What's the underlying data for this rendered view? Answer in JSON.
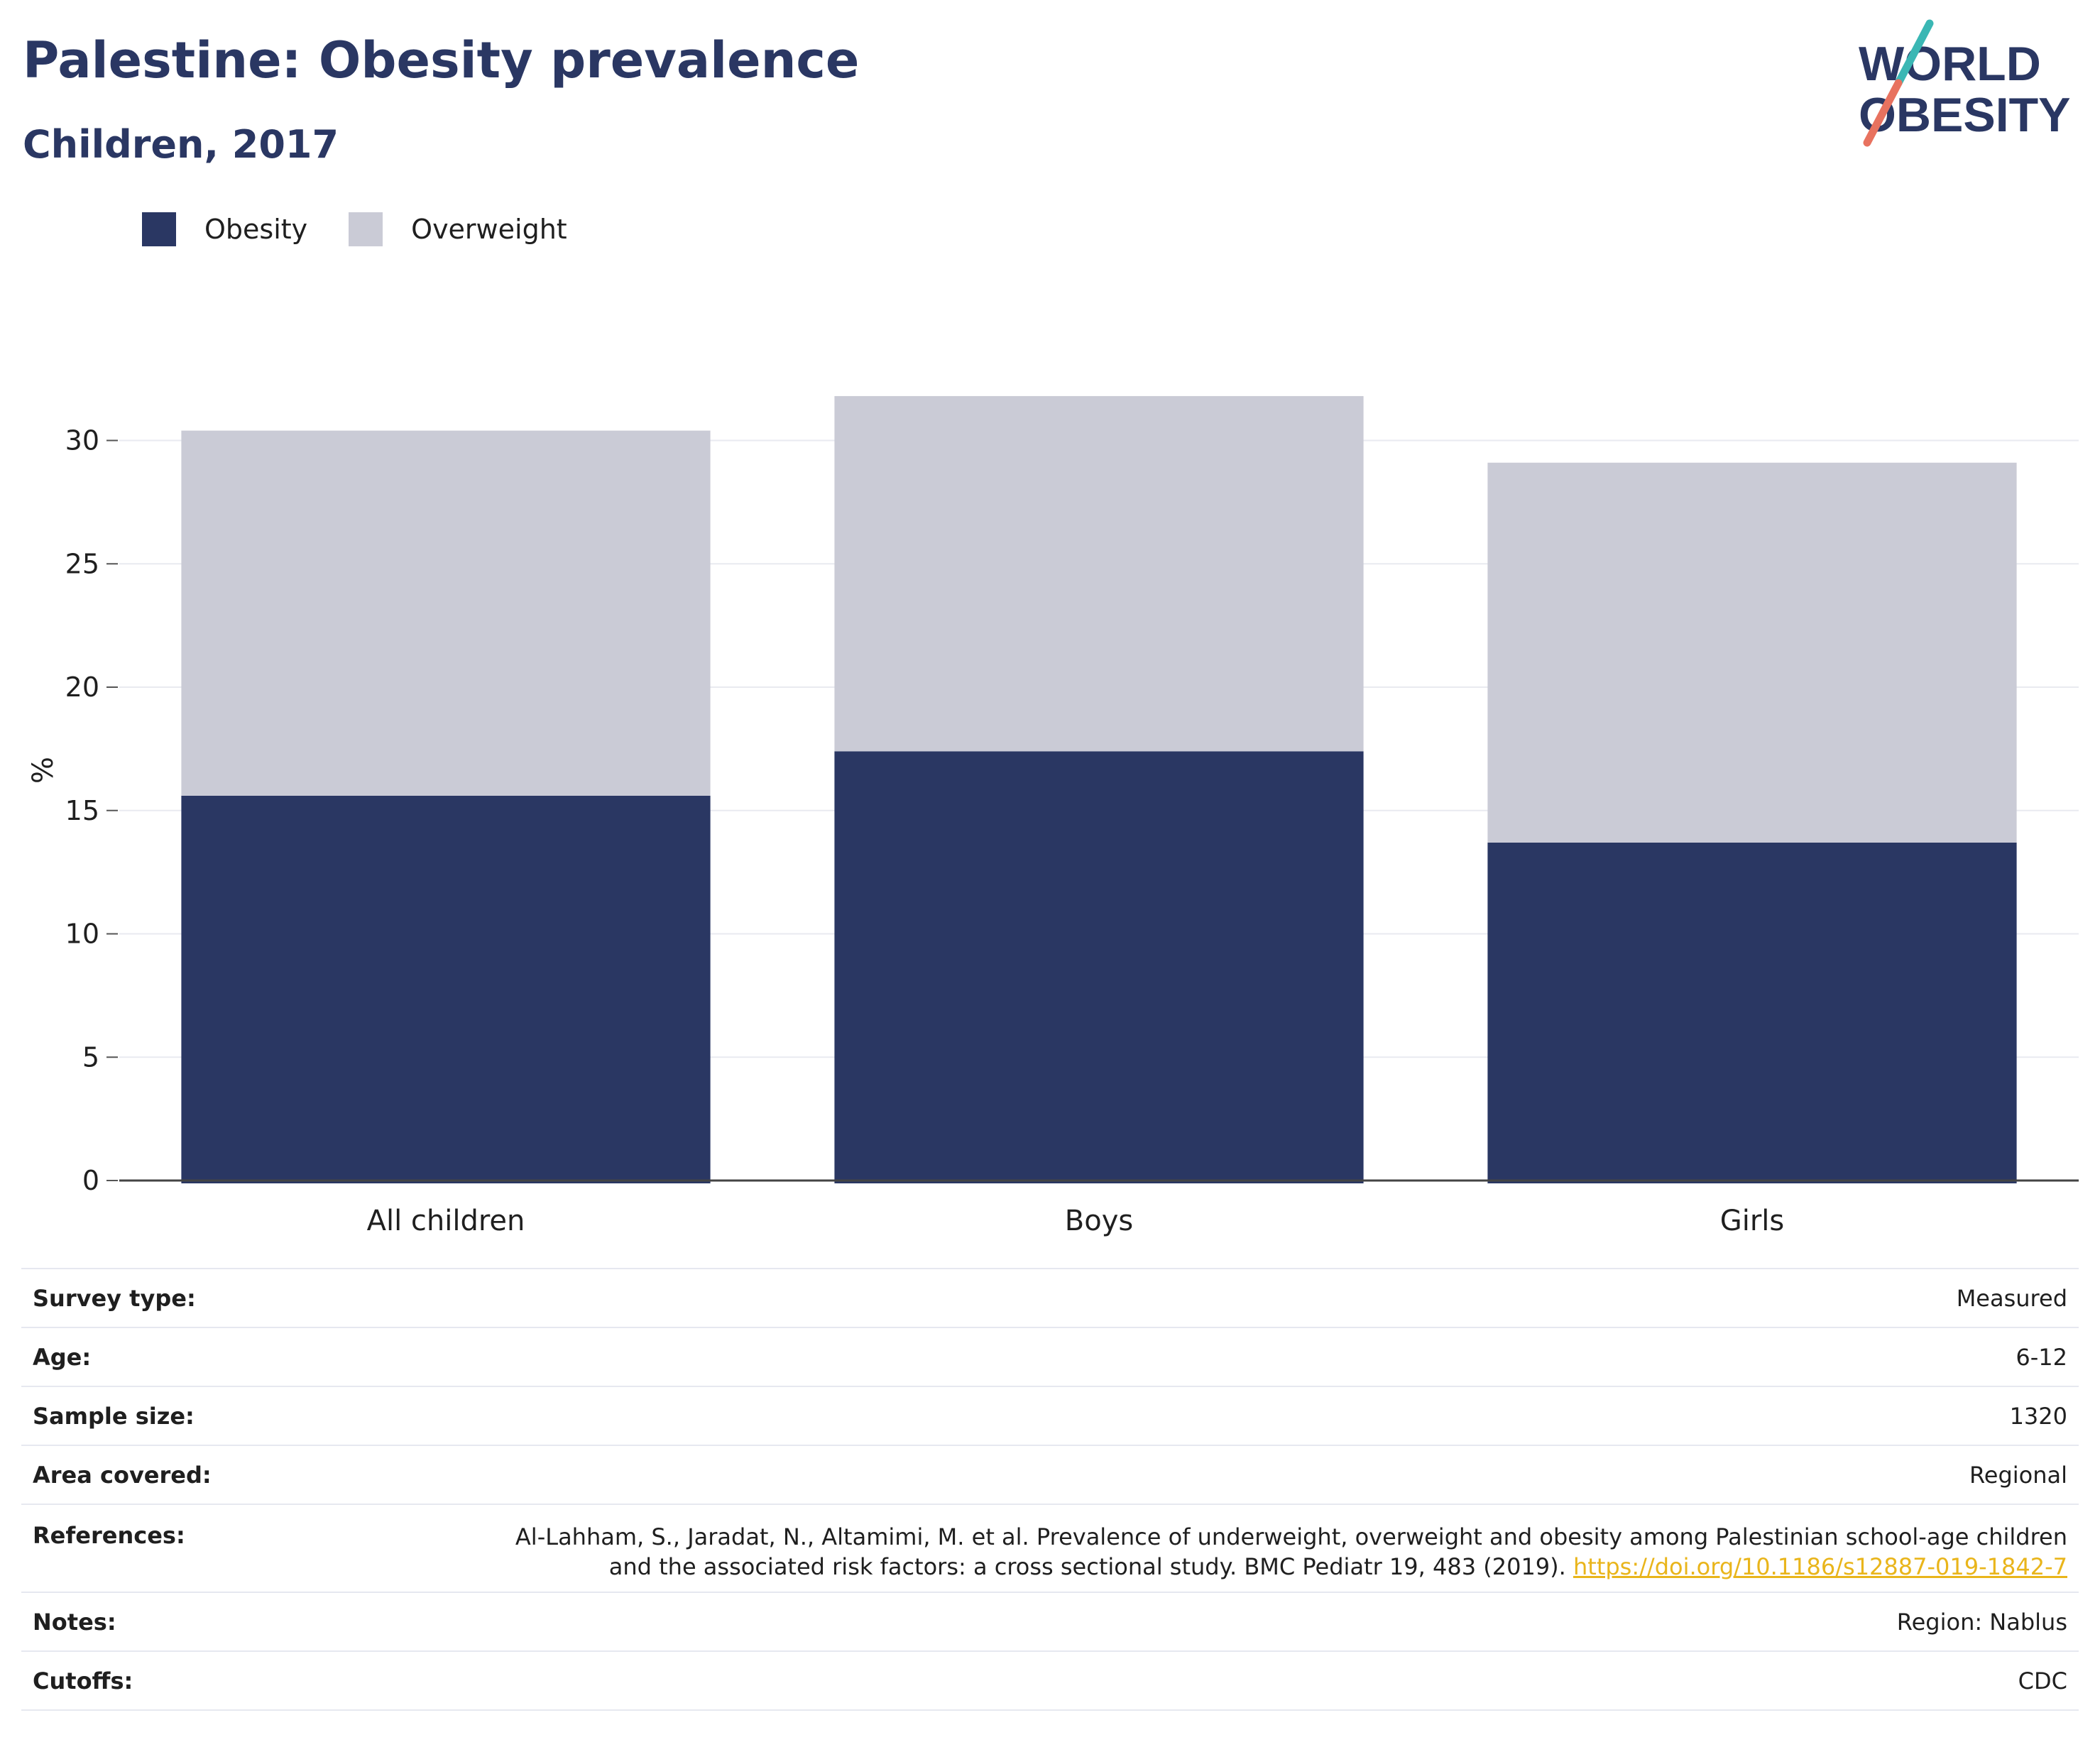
{
  "header": {
    "title": "Palestine: Obesity prevalence",
    "subtitle": "Children, 2017"
  },
  "logo": {
    "line1": "WORLD",
    "line2": "OBESITY",
    "colors": {
      "text": "#2a3763",
      "slash_top": "#3ab7b4",
      "slash_bottom": "#e8725f"
    }
  },
  "legend": {
    "items": [
      {
        "label": "Obesity",
        "color": "#2a3763"
      },
      {
        "label": "Overweight",
        "color": "#cacbd6"
      }
    ]
  },
  "chart_data": {
    "type": "bar",
    "stacked": true,
    "categories": [
      "All children",
      "Boys",
      "Girls"
    ],
    "series": [
      {
        "name": "Obesity",
        "color": "#2a3763",
        "values": [
          15.6,
          17.4,
          13.7
        ]
      },
      {
        "name": "Overweight",
        "color": "#cacbd6",
        "values": [
          14.8,
          14.4,
          15.4
        ]
      }
    ],
    "ylabel": "%",
    "ylim": [
      0,
      32
    ],
    "yticks": [
      0,
      5,
      10,
      15,
      20,
      25,
      30
    ],
    "grid": true,
    "legend_position": "top-left"
  },
  "meta": {
    "survey_type": {
      "label": "Survey type:",
      "value": "Measured"
    },
    "age": {
      "label": "Age:",
      "value": "6-12"
    },
    "sample_size": {
      "label": "Sample size:",
      "value": "1320"
    },
    "area_covered": {
      "label": "Area covered:",
      "value": "Regional"
    },
    "references": {
      "label": "References:",
      "line1": "Al-Lahham, S., Jaradat, N., Altamimi, M. et al. Prevalence of underweight, overweight and obesity among Palestinian school-age children",
      "line2": "and the associated risk factors: a cross sectional study. BMC Pediatr 19, 483 (2019).",
      "link": "https://doi.org/10.1186/s12887-019-1842-7"
    },
    "notes": {
      "label": "Notes:",
      "value": "Region: Nablus"
    },
    "cutoffs": {
      "label": "Cutoffs:",
      "value": "CDC"
    }
  }
}
